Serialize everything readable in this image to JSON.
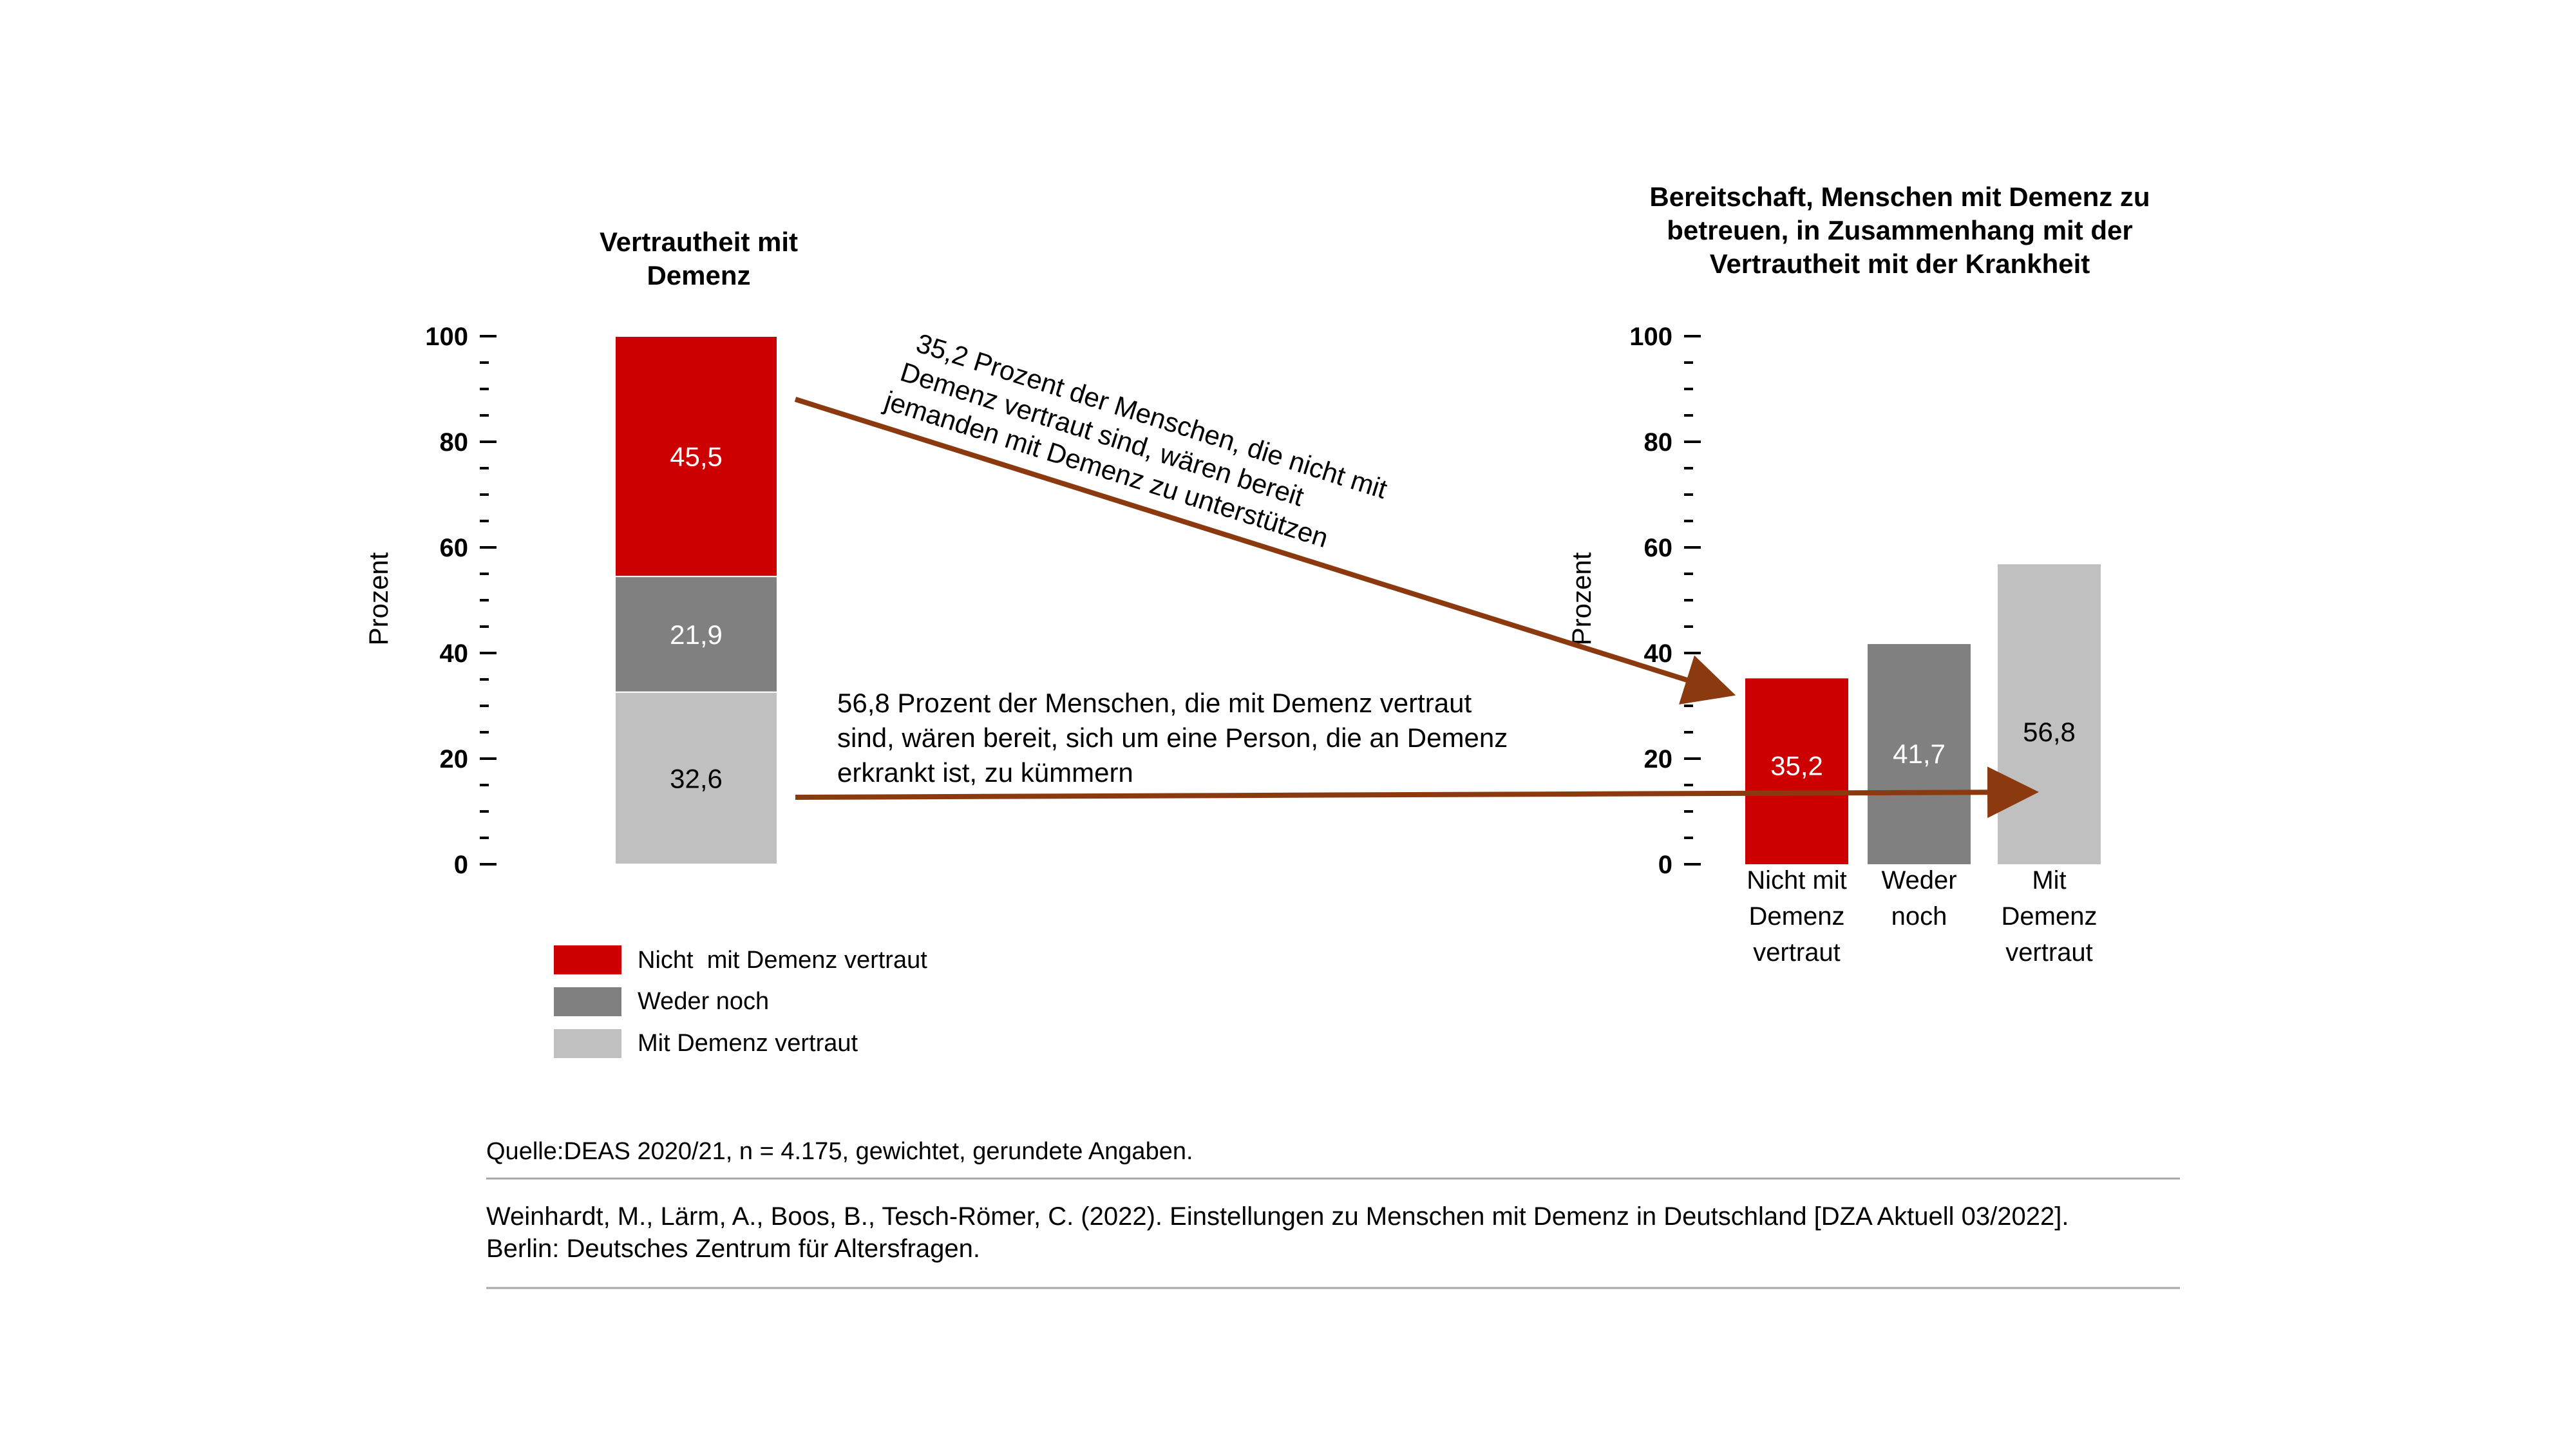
{
  "chart_data": [
    {
      "type": "bar",
      "stacked": true,
      "title": "Vertrautheit mit Demenz",
      "title_lines": [
        "Vertrautheit mit",
        "Demenz"
      ],
      "ylabel": "Prozent",
      "ylim": [
        0,
        100
      ],
      "yticks": [
        "0",
        "20",
        "40",
        "60",
        "80",
        "100"
      ],
      "series": [
        {
          "name": "Mit Demenz vertraut",
          "values": [
            32.6
          ],
          "label": "32,6",
          "color": "#c0c0c0"
        },
        {
          "name": "Weder noch",
          "values": [
            21.9
          ],
          "label": "21,9",
          "color": "#808080"
        },
        {
          "name": "Nicht  mit Demenz vertraut",
          "values": [
            45.5
          ],
          "label": "45,5",
          "color": "#cc0000"
        }
      ]
    },
    {
      "type": "bar",
      "title": "Bereitschaft, Menschen mit Demenz zu betreuen, in Zusammenhang mit der Vertrautheit mit der Krankheit",
      "title_lines": [
        "Bereitschaft, Menschen mit Demenz zu",
        "betreuen, in Zusammenhang mit der",
        "Vertrautheit mit der Krankheit"
      ],
      "ylabel": "Prozent",
      "ylim": [
        0,
        100
      ],
      "yticks": [
        "0",
        "20",
        "40",
        "60",
        "80",
        "100"
      ],
      "categories": [
        "Nicht mit Demenz vertraut",
        "Weder noch",
        "Mit Demenz vertraut"
      ],
      "category_lines": [
        [
          "Nicht mit",
          "Demenz",
          "vertraut"
        ],
        [
          "Weder",
          "noch"
        ],
        [
          "Mit",
          "Demenz",
          "vertraut"
        ]
      ],
      "values": [
        35.2,
        41.7,
        56.8
      ],
      "labels": [
        "35,2",
        "41,7",
        "56,8"
      ],
      "colors": [
        "#cc0000",
        "#808080",
        "#c0c0c0"
      ],
      "label_colors": [
        "#ffffff",
        "#ffffff",
        "#000000"
      ]
    }
  ],
  "legend": [
    {
      "label": "Nicht  mit Demenz vertraut",
      "color": "#cc0000"
    },
    {
      "label": "Weder noch",
      "color": "#808080"
    },
    {
      "label": "Mit Demenz vertraut",
      "color": "#c0c0c0"
    }
  ],
  "annotations": {
    "arrow_color": "#8b3a0f",
    "upper": [
      "35,2 Prozent der Menschen, die nicht mit",
      "Demenz vertraut sind, wären bereit",
      "jemanden mit Demenz zu unterstützen"
    ],
    "lower": [
      "56,8 Prozent der Menschen, die mit Demenz vertraut",
      "sind, wären bereit, sich um eine Person, die an Demenz",
      "erkrankt ist, zu kümmern"
    ]
  },
  "footer": {
    "source": "Quelle:DEAS 2020/21, n = 4.175, gewichtet, gerundete Angaben.",
    "citation_line1": "Weinhardt, M., Lärm, A., Boos, B., Tesch-Römer, C. (2022). Einstellungen zu Menschen mit Demenz in Deutschland [DZA Aktuell 03/2022].",
    "citation_line2": "Berlin: Deutsches Zentrum für Altersfragen."
  }
}
